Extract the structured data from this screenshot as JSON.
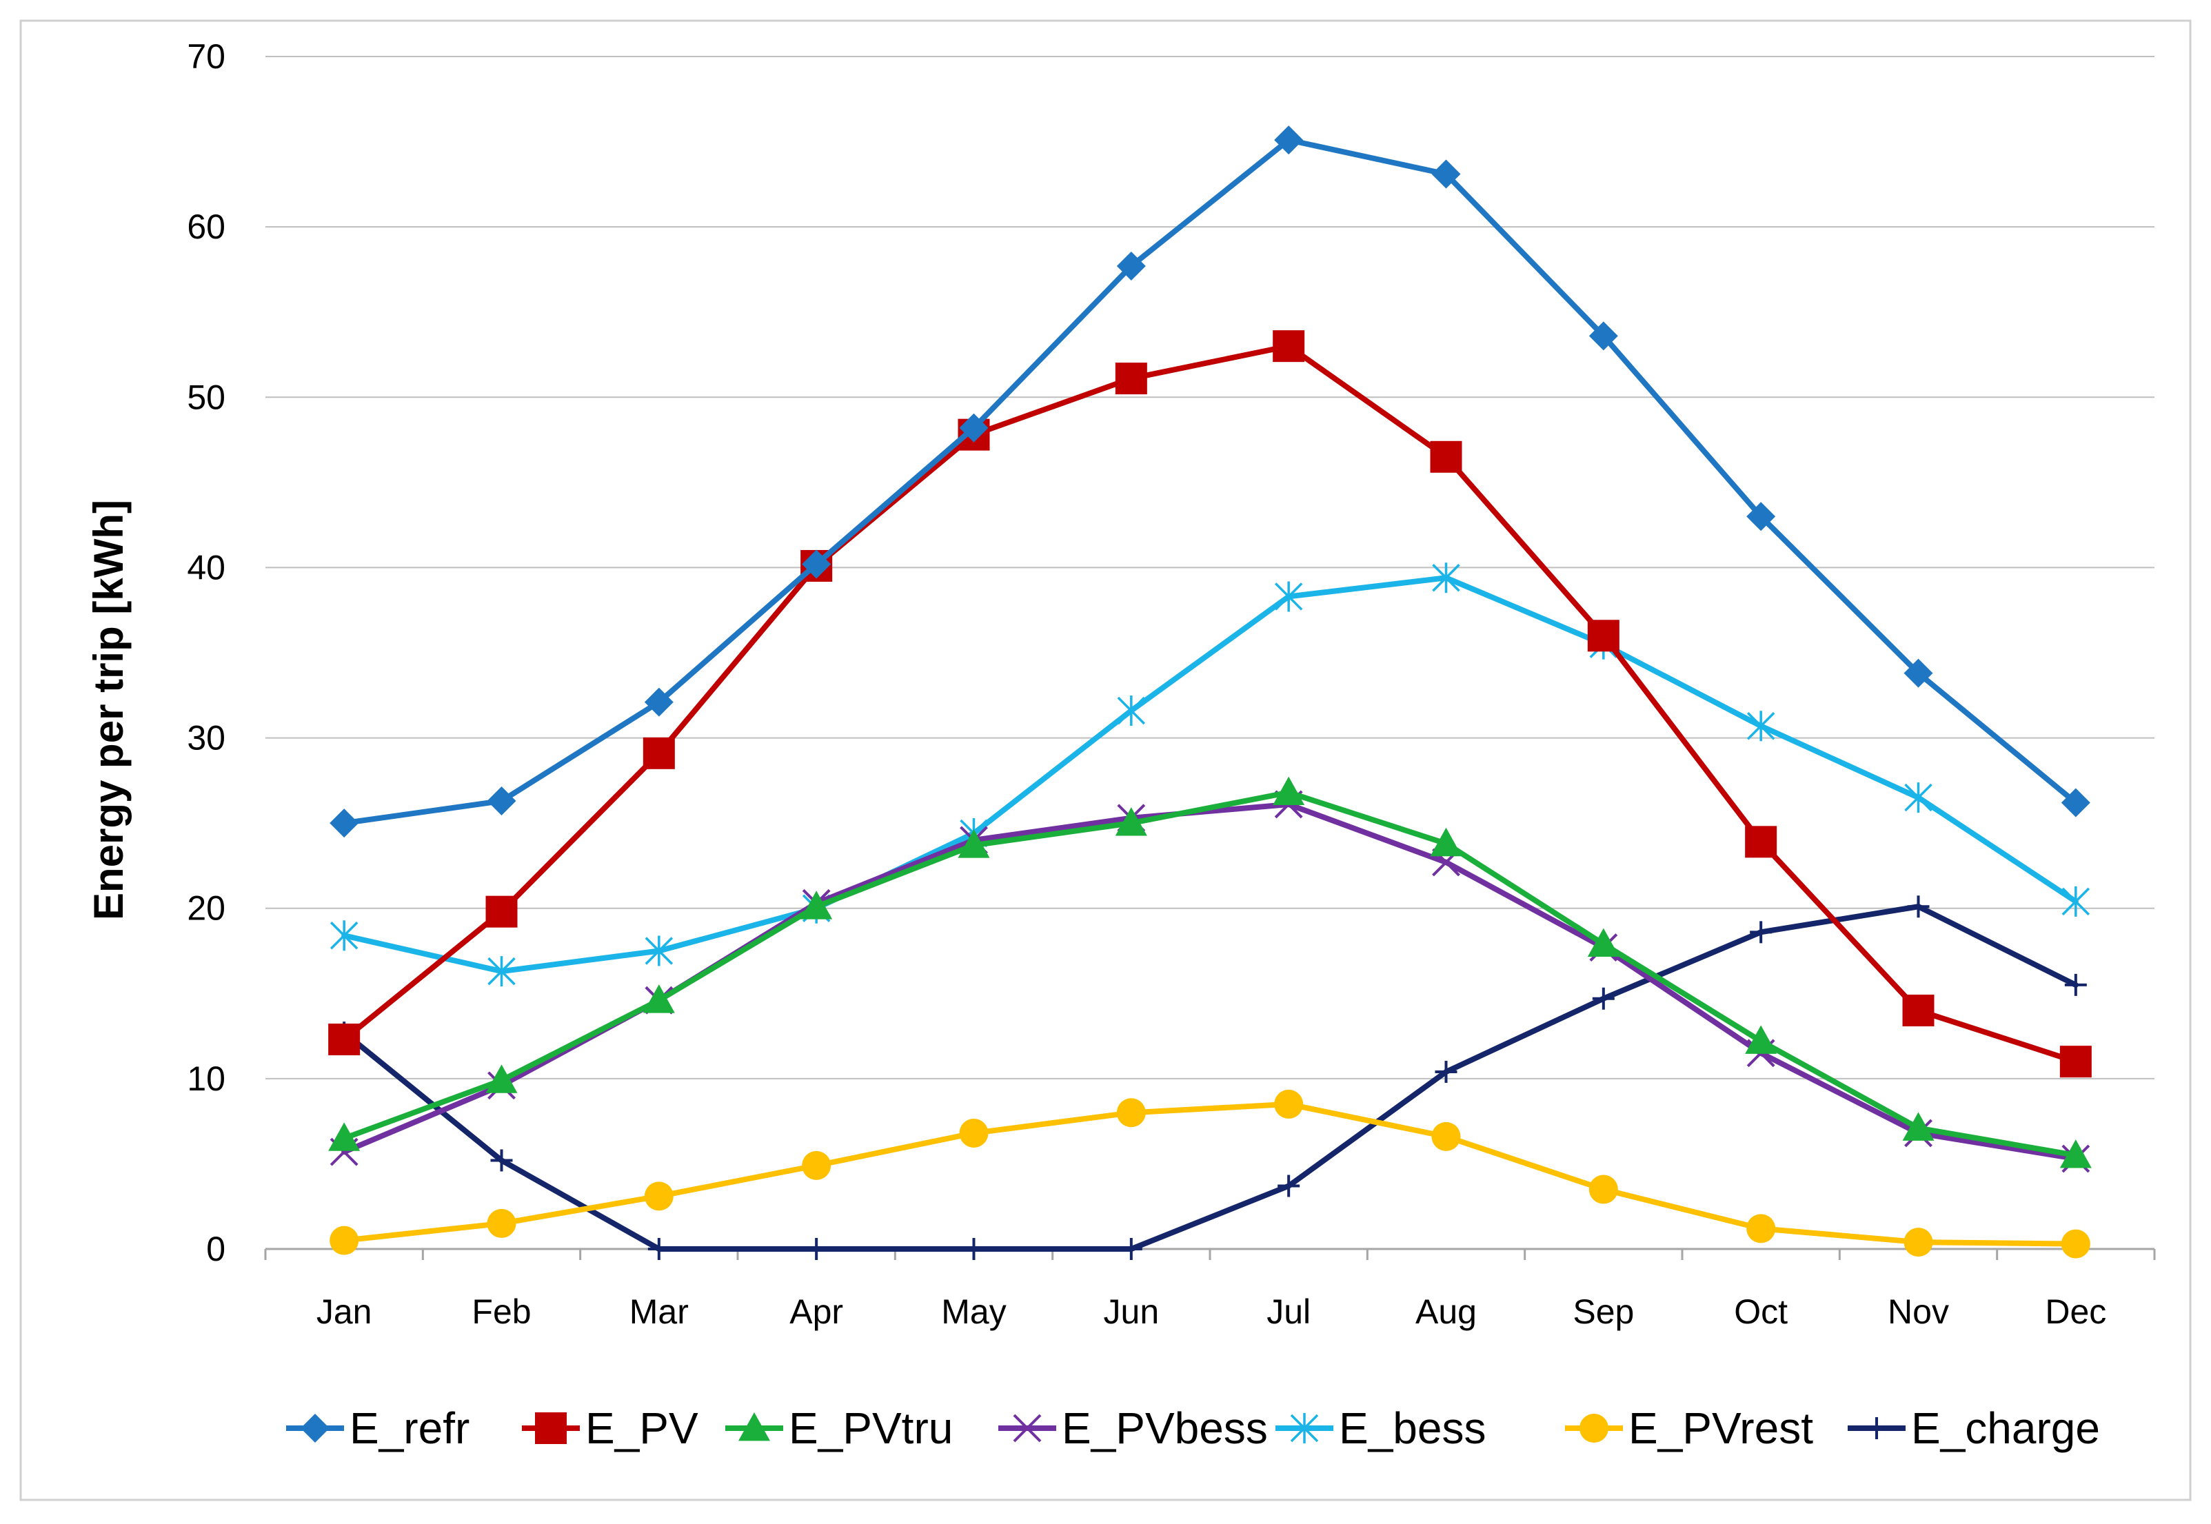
{
  "chart_data": {
    "type": "line",
    "title": "",
    "xlabel": "",
    "ylabel": "Energy per trip [kWh]",
    "ylim": [
      0,
      70
    ],
    "yticks": [
      0,
      10,
      20,
      30,
      40,
      50,
      60,
      70
    ],
    "grid": true,
    "legend_position": "bottom",
    "categories": [
      "Jan",
      "Feb",
      "Mar",
      "Apr",
      "May",
      "Jun",
      "Jul",
      "Aug",
      "Sep",
      "Oct",
      "Nov",
      "Dec"
    ],
    "series": [
      {
        "name": "E_refr",
        "color": "#1F77C4",
        "marker": "diamond",
        "values": [
          25.0,
          26.3,
          32.1,
          40.2,
          48.2,
          57.7,
          65.1,
          63.1,
          53.6,
          43.0,
          33.8,
          26.2
        ]
      },
      {
        "name": "E_PV",
        "color": "#C00000",
        "marker": "square",
        "values": [
          12.3,
          19.8,
          29.1,
          40.1,
          47.8,
          51.1,
          53.0,
          46.5,
          36.0,
          23.9,
          14.0,
          11.0
        ]
      },
      {
        "name": "E_PVtru",
        "color": "#1AAE3A",
        "marker": "triangle",
        "values": [
          6.5,
          9.9,
          14.6,
          20.1,
          23.7,
          25.0,
          26.8,
          23.8,
          17.9,
          12.2,
          7.1,
          5.5
        ]
      },
      {
        "name": "E_PVbess",
        "color": "#7030A0",
        "marker": "x",
        "values": [
          5.7,
          9.6,
          14.6,
          20.3,
          24.0,
          25.3,
          26.1,
          22.7,
          17.7,
          11.5,
          6.8,
          5.3
        ]
      },
      {
        "name": "E_bess",
        "color": "#1AB4E8",
        "marker": "star",
        "values": [
          18.4,
          16.3,
          17.5,
          20.0,
          24.4,
          31.6,
          38.3,
          39.4,
          35.5,
          30.7,
          26.5,
          20.4
        ]
      },
      {
        "name": "E_PVrest",
        "color": "#FFC000",
        "marker": "circle",
        "values": [
          0.5,
          1.5,
          3.1,
          4.9,
          6.8,
          8.0,
          8.5,
          6.6,
          3.5,
          1.2,
          0.4,
          0.3
        ]
      },
      {
        "name": "E_charge",
        "color": "#14256A",
        "marker": "plus",
        "values": [
          12.7,
          5.2,
          0.0,
          0.0,
          0.0,
          0.0,
          3.7,
          10.4,
          14.7,
          18.6,
          20.1,
          15.5
        ]
      }
    ]
  }
}
